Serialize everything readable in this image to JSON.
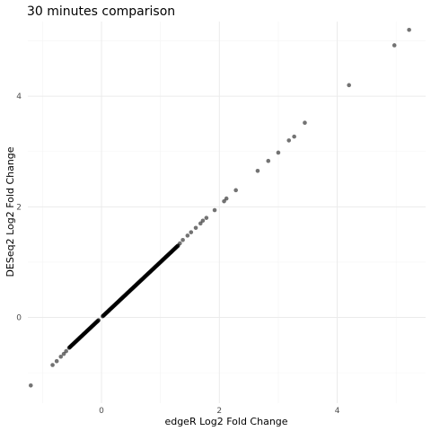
{
  "chart_data": {
    "type": "scatter",
    "title": "30 minutes comparison",
    "xlabel": "edgeR Log2 Fold Change",
    "ylabel": "DESeq2 Log2 Fold Change",
    "xlim": [
      -1.25,
      5.5
    ],
    "ylim": [
      -1.55,
      5.35
    ],
    "x_ticks": [
      0,
      2,
      4
    ],
    "y_ticks": [
      0,
      2,
      4
    ],
    "x_tick_labels": [
      "0",
      "2",
      "4"
    ],
    "y_tick_labels": [
      "0",
      "2",
      "4"
    ],
    "grid": true,
    "point_color": "#000000",
    "dense_segments": [
      {
        "x_start": -0.55,
        "x_end": -0.05,
        "count": 70
      },
      {
        "x_start": 0.02,
        "x_end": 1.3,
        "count": 180
      }
    ],
    "points": [
      {
        "x": -1.2,
        "y": -1.23
      },
      {
        "x": -0.83,
        "y": -0.86
      },
      {
        "x": -0.76,
        "y": -0.79
      },
      {
        "x": -0.69,
        "y": -0.71
      },
      {
        "x": -0.64,
        "y": -0.66
      },
      {
        "x": -0.6,
        "y": -0.61
      },
      {
        "x": 1.33,
        "y": 1.34
      },
      {
        "x": 1.38,
        "y": 1.4
      },
      {
        "x": 1.46,
        "y": 1.48
      },
      {
        "x": 1.52,
        "y": 1.54
      },
      {
        "x": 1.6,
        "y": 1.62
      },
      {
        "x": 1.68,
        "y": 1.7
      },
      {
        "x": 1.72,
        "y": 1.75
      },
      {
        "x": 1.78,
        "y": 1.8
      },
      {
        "x": 1.92,
        "y": 1.94
      },
      {
        "x": 2.08,
        "y": 2.1
      },
      {
        "x": 2.12,
        "y": 2.15
      },
      {
        "x": 2.28,
        "y": 2.3
      },
      {
        "x": 2.65,
        "y": 2.65
      },
      {
        "x": 2.83,
        "y": 2.83
      },
      {
        "x": 3.0,
        "y": 2.98
      },
      {
        "x": 3.18,
        "y": 3.2
      },
      {
        "x": 3.27,
        "y": 3.27
      },
      {
        "x": 3.45,
        "y": 3.52
      },
      {
        "x": 4.2,
        "y": 4.2
      },
      {
        "x": 4.97,
        "y": 4.92
      },
      {
        "x": 5.22,
        "y": 5.2
      }
    ]
  }
}
